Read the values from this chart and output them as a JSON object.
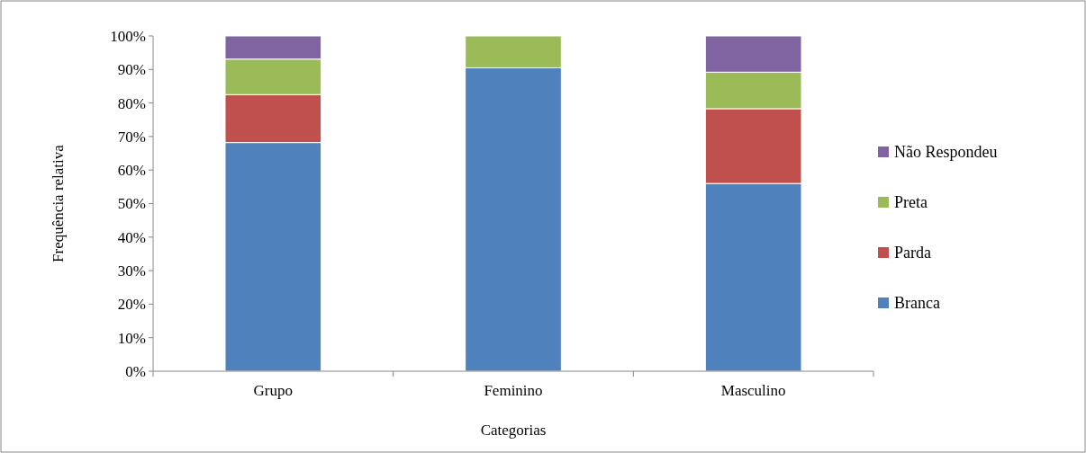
{
  "chart_data": {
    "type": "bar",
    "stacked": true,
    "xlabel": "Categorias",
    "ylabel": "Frequência relativa",
    "categories": [
      "Grupo",
      "Feminino",
      "Masculino"
    ],
    "series": [
      {
        "name": "Branca",
        "color": "#4f81bd",
        "values": [
          68.2,
          90.5,
          56.0
        ]
      },
      {
        "name": "Parda",
        "color": "#c0504d",
        "values": [
          14.3,
          0,
          22.3
        ]
      },
      {
        "name": "Preta",
        "color": "#9bbb59",
        "values": [
          10.6,
          9.5,
          10.9
        ]
      },
      {
        "name": "Não Respondeu",
        "color": "#8064a2",
        "values": [
          6.9,
          0,
          10.8
        ]
      }
    ],
    "ylim": [
      0,
      100
    ],
    "yticks": [
      {
        "value": 0,
        "label": "0%"
      },
      {
        "value": 10,
        "label": "10%"
      },
      {
        "value": 20,
        "label": "20%"
      },
      {
        "value": 30,
        "label": "30%"
      },
      {
        "value": 40,
        "label": "40%"
      },
      {
        "value": 50,
        "label": "50%"
      },
      {
        "value": 60,
        "label": "60%"
      },
      {
        "value": 70,
        "label": "70%"
      },
      {
        "value": 80,
        "label": "80%"
      },
      {
        "value": 90,
        "label": "90%"
      },
      {
        "value": 100,
        "label": "100%"
      }
    ],
    "grid": false,
    "legend": "right"
  }
}
